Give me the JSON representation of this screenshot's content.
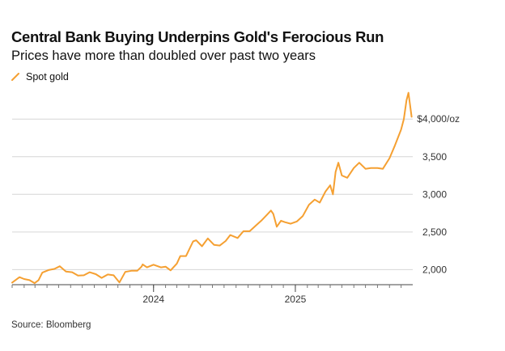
{
  "header": {
    "title": "Central Bank Buying Underpins Gold's Ferocious Run",
    "subtitle": "Prices have more than doubled over past two years"
  },
  "legend": {
    "label": "Spot gold",
    "color": "#f5a032"
  },
  "footer": {
    "source": "Source: Bloomberg"
  },
  "chart_data": {
    "type": "line",
    "title": "Central Bank Buying Underpins Gold's Ferocious Run",
    "subtitle": "Prices have more than doubled over past two years",
    "xlabel": "",
    "ylabel": "",
    "xlim": [
      "2023-01-01",
      "2025-10-31"
    ],
    "ylim": [
      1800,
      4400
    ],
    "x_ticks": [
      {
        "value": "2024-01-01",
        "label": "2024"
      },
      {
        "value": "2025-01-01",
        "label": "2025"
      }
    ],
    "y_ticks": [
      {
        "value": 2000,
        "label": "2,000"
      },
      {
        "value": 2500,
        "label": "2,500"
      },
      {
        "value": 3000,
        "label": "3,000"
      },
      {
        "value": 3500,
        "label": "3,500"
      },
      {
        "value": 4000,
        "label": "$4,000/oz"
      }
    ],
    "grid": true,
    "legend_position": "top-left",
    "series": [
      {
        "name": "Spot gold",
        "color": "#f5a032",
        "x": [
          "2023-01-01",
          "2023-01-20",
          "2023-02-01",
          "2023-02-15",
          "2023-02-28",
          "2023-03-10",
          "2023-03-20",
          "2023-04-05",
          "2023-04-20",
          "2023-05-04",
          "2023-05-20",
          "2023-06-05",
          "2023-06-20",
          "2023-07-05",
          "2023-07-20",
          "2023-08-05",
          "2023-08-20",
          "2023-09-05",
          "2023-09-20",
          "2023-10-05",
          "2023-10-20",
          "2023-11-05",
          "2023-11-20",
          "2023-12-01",
          "2023-12-04",
          "2023-12-15",
          "2024-01-01",
          "2024-01-20",
          "2024-02-01",
          "2024-02-14",
          "2024-03-01",
          "2024-03-10",
          "2024-03-25",
          "2024-04-05",
          "2024-04-12",
          "2024-04-20",
          "2024-05-05",
          "2024-05-20",
          "2024-06-05",
          "2024-06-20",
          "2024-07-05",
          "2024-07-17",
          "2024-08-05",
          "2024-08-20",
          "2024-09-05",
          "2024-09-20",
          "2024-10-05",
          "2024-10-20",
          "2024-10-30",
          "2024-11-05",
          "2024-11-14",
          "2024-11-25",
          "2024-12-05",
          "2024-12-20",
          "2025-01-05",
          "2025-01-20",
          "2025-02-05",
          "2025-02-20",
          "2025-03-05",
          "2025-03-20",
          "2025-04-01",
          "2025-04-08",
          "2025-04-15",
          "2025-04-22",
          "2025-05-01",
          "2025-05-15",
          "2025-06-01",
          "2025-06-15",
          "2025-07-01",
          "2025-07-15",
          "2025-08-01",
          "2025-08-15",
          "2025-09-01",
          "2025-09-15",
          "2025-10-01",
          "2025-10-08",
          "2025-10-15",
          "2025-10-20",
          "2025-10-28"
        ],
        "values": [
          1828,
          1900,
          1875,
          1860,
          1820,
          1860,
          1960,
          1995,
          2010,
          2045,
          1975,
          1965,
          1920,
          1925,
          1965,
          1940,
          1890,
          1935,
          1925,
          1830,
          1970,
          1985,
          1985,
          2040,
          2070,
          2030,
          2065,
          2030,
          2040,
          1990,
          2080,
          2180,
          2180,
          2300,
          2375,
          2390,
          2310,
          2415,
          2330,
          2320,
          2380,
          2460,
          2420,
          2510,
          2510,
          2580,
          2650,
          2730,
          2785,
          2740,
          2570,
          2650,
          2630,
          2610,
          2640,
          2710,
          2860,
          2930,
          2890,
          3040,
          3120,
          3000,
          3300,
          3420,
          3250,
          3220,
          3350,
          3420,
          3340,
          3350,
          3350,
          3340,
          3480,
          3650,
          3860,
          4000,
          4250,
          4350,
          4030
        ]
      }
    ]
  }
}
